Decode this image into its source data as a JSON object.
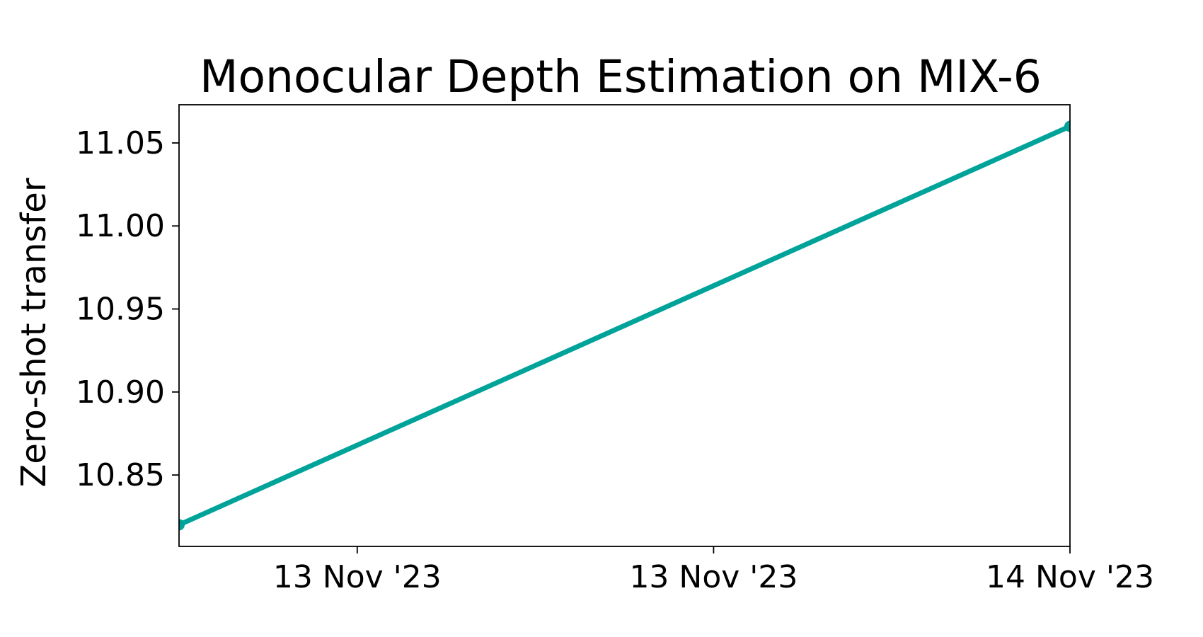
{
  "chart_data": {
    "type": "line",
    "title": "Monocular Depth Estimation on MIX-6",
    "xlabel": "",
    "ylabel": "Zero-shot transfer",
    "x_tick_labels": [
      "13 Nov '23",
      "13 Nov '23",
      "14 Nov '23"
    ],
    "y_tick_labels": [
      "10.85",
      "10.90",
      "10.95",
      "11.00",
      "11.05"
    ],
    "ylim": [
      10.807,
      11.073
    ],
    "grid": false,
    "legend": "none",
    "series": [
      {
        "color": "#00a39a",
        "points": [
          {
            "x": "2023-11-13",
            "y": 10.82
          },
          {
            "x": "2023-11-14",
            "y": 11.06
          }
        ]
      }
    ]
  }
}
